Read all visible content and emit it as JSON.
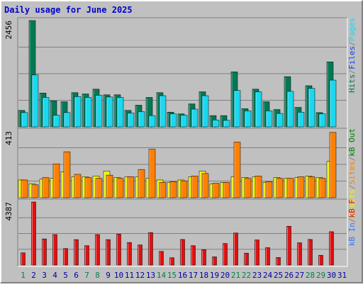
{
  "title": "Daily usage for June 2025",
  "colors": {
    "background": "#c0c0c0",
    "title": "#0000d0",
    "frame_light": "#ffffff",
    "frame_dark": "#808080",
    "plot_background": "#c0c0c0",
    "grid": "#808080",
    "hits": "#007a55",
    "files": "#1040ff",
    "pages": "#19d8f0",
    "visits": "#f0f000",
    "sites": "#ff8000",
    "kbin": "#2c7aff",
    "kbout": "#008000",
    "kbf": "#e01010",
    "weekend_day": "#00804a",
    "weekday": "#0000a0"
  },
  "legend": {
    "top": [
      {
        "text": "Hits",
        "color_key": "hits"
      },
      {
        "text": "/",
        "color_key": "frame_dark"
      },
      {
        "text": "Files",
        "color_key": "files"
      },
      {
        "text": "/",
        "color_key": "frame_dark"
      },
      {
        "text": "Pages",
        "color_key": "pages"
      }
    ],
    "middle": [
      {
        "text": "Visits",
        "color_key": "visits"
      },
      {
        "text": "/",
        "color_key": "frame_dark"
      },
      {
        "text": "Sites",
        "color_key": "sites"
      },
      {
        "text": "/",
        "color_key": "frame_dark"
      },
      {
        "text": "kB Out",
        "color_key": "kbout"
      }
    ],
    "bottom": [
      {
        "text": "kB In",
        "color_key": "kbin"
      },
      {
        "text": "/",
        "color_key": "frame_dark"
      },
      {
        "text": "kB F",
        "color_key": "kbf"
      }
    ]
  },
  "chart_data": [
    {
      "type": "bar",
      "panel": "hits-files-pages",
      "y_max_label": "2456",
      "ylim": [
        0,
        2456
      ],
      "categories": [
        "1",
        "2",
        "3",
        "4",
        "5",
        "6",
        "7",
        "8",
        "9",
        "10",
        "11",
        "12",
        "13",
        "14",
        "15",
        "16",
        "17",
        "18",
        "19",
        "20",
        "21",
        "22",
        "23",
        "24",
        "25",
        "26",
        "27",
        "28",
        "29",
        "30",
        "31"
      ],
      "series": [
        {
          "name": "Hits",
          "color_key": "hits",
          "values": [
            380,
            2456,
            780,
            600,
            580,
            790,
            760,
            870,
            740,
            740,
            380,
            500,
            680,
            790,
            340,
            300,
            530,
            810,
            260,
            260,
            1270,
            420,
            870,
            580,
            400,
            1160,
            450,
            950,
            330,
            1500,
            0
          ]
        },
        {
          "name": "Pages",
          "color_key": "pages",
          "values": [
            330,
            1200,
            680,
            270,
            330,
            700,
            680,
            730,
            690,
            680,
            320,
            350,
            260,
            720,
            300,
            270,
            410,
            720,
            160,
            150,
            840,
            370,
            810,
            370,
            310,
            820,
            340,
            890,
            300,
            1080,
            0
          ]
        }
      ]
    },
    {
      "type": "bar",
      "panel": "visits-sites",
      "y_max_label": "413",
      "ylim": [
        0,
        413
      ],
      "categories": [
        "1",
        "2",
        "3",
        "4",
        "5",
        "6",
        "7",
        "8",
        "9",
        "10",
        "11",
        "12",
        "13",
        "14",
        "15",
        "16",
        "17",
        "18",
        "19",
        "20",
        "21",
        "22",
        "23",
        "24",
        "25",
        "26",
        "27",
        "28",
        "29",
        "30",
        "31"
      ],
      "series": [
        {
          "name": "Visits",
          "color_key": "visits",
          "values": [
            110,
            85,
            115,
            120,
            160,
            130,
            130,
            135,
            165,
            125,
            130,
            130,
            120,
            110,
            95,
            110,
            130,
            165,
            85,
            95,
            130,
            125,
            130,
            95,
            125,
            120,
            125,
            135,
            125,
            225,
            0
          ]
        },
        {
          "name": "Sites",
          "color_key": "sites",
          "values": [
            110,
            80,
            125,
            210,
            285,
            145,
            125,
            120,
            140,
            120,
            130,
            175,
            300,
            95,
            100,
            105,
            135,
            150,
            90,
            95,
            345,
            120,
            135,
            100,
            120,
            120,
            130,
            130,
            120,
            405,
            0
          ]
        }
      ]
    },
    {
      "type": "bar",
      "panel": "kbf",
      "y_max_label": "4387",
      "ylim": [
        0,
        4387
      ],
      "categories": [
        "1",
        "2",
        "3",
        "4",
        "5",
        "6",
        "7",
        "8",
        "9",
        "10",
        "11",
        "12",
        "13",
        "14",
        "15",
        "16",
        "17",
        "18",
        "19",
        "20",
        "21",
        "22",
        "23",
        "24",
        "25",
        "26",
        "27",
        "28",
        "29",
        "30",
        "31"
      ],
      "series": [
        {
          "name": "kB F",
          "color_key": "kbf",
          "values": [
            850,
            4387,
            1820,
            2120,
            1150,
            1770,
            1350,
            2120,
            1770,
            2150,
            1570,
            1400,
            2260,
            950,
            510,
            1780,
            1350,
            1070,
            570,
            1500,
            2230,
            830,
            1750,
            1210,
            530,
            2700,
            1550,
            1780,
            680,
            2320,
            0
          ]
        }
      ]
    }
  ]
}
